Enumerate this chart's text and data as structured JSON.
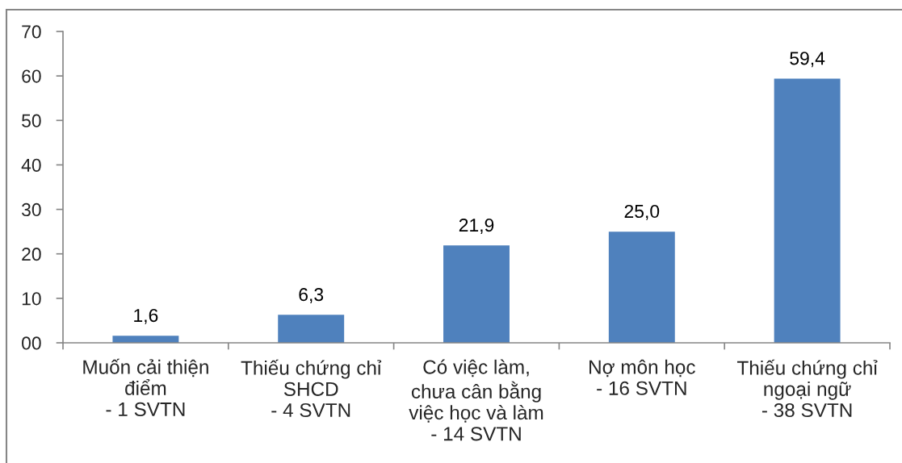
{
  "chart_data": {
    "type": "bar",
    "categories": [
      "Muốn cải thiện\nđiểm\n- 1 SVTN",
      "Thiếu chứng chỉ\nSHCD\n- 4 SVTN",
      "Có việc làm,\nchưa cân bằng\nviệc học và làm\n- 14 SVTN",
      "Nợ môn học\n- 16 SVTN",
      "Thiếu chứng chỉ\nngoại ngữ\n- 38 SVTN"
    ],
    "values": [
      1.6,
      6.3,
      21.9,
      25.0,
      59.4
    ],
    "value_labels": [
      "1,6",
      "6,3",
      "21,9",
      "25,0",
      "59,4"
    ],
    "color": "#4f81bd",
    "ylim": [
      0,
      70
    ],
    "yticks": [
      {
        "value": 0,
        "label": "00"
      },
      10,
      20,
      30,
      40,
      50,
      60,
      70
    ],
    "grid": false
  }
}
